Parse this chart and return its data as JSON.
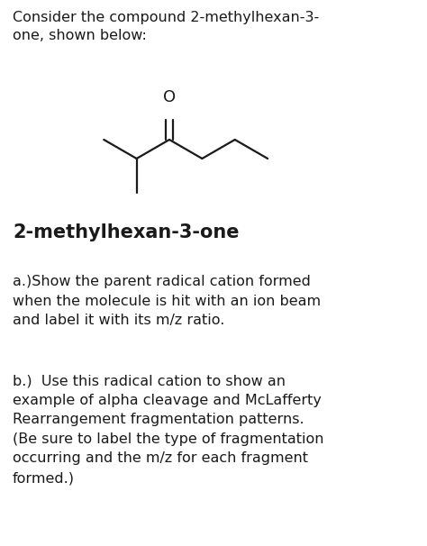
{
  "bg_color": "#ffffff",
  "title_text": "Consider the compound 2-methylhexan-3-\none, shown below:",
  "compound_name": "2-methylhexan-3-one",
  "question_a": "a.)Show the parent radical cation formed\nwhen the molecule is hit with an ion beam\nand label it with its m/z ratio.",
  "question_b": "b.)  Use this radical cation to show an\nexample of alpha cleavage and McLafferty\nRearrangement fragmentation patterns.\n(Be sure to label the type of fragmentation\noccurring and the m/z for each fragment\nformed.)",
  "text_color": "#1a1a1a",
  "title_fontsize": 11.5,
  "body_fontsize": 11.5,
  "name_fontsize": 15,
  "fig_width": 4.74,
  "fig_height": 6.06
}
